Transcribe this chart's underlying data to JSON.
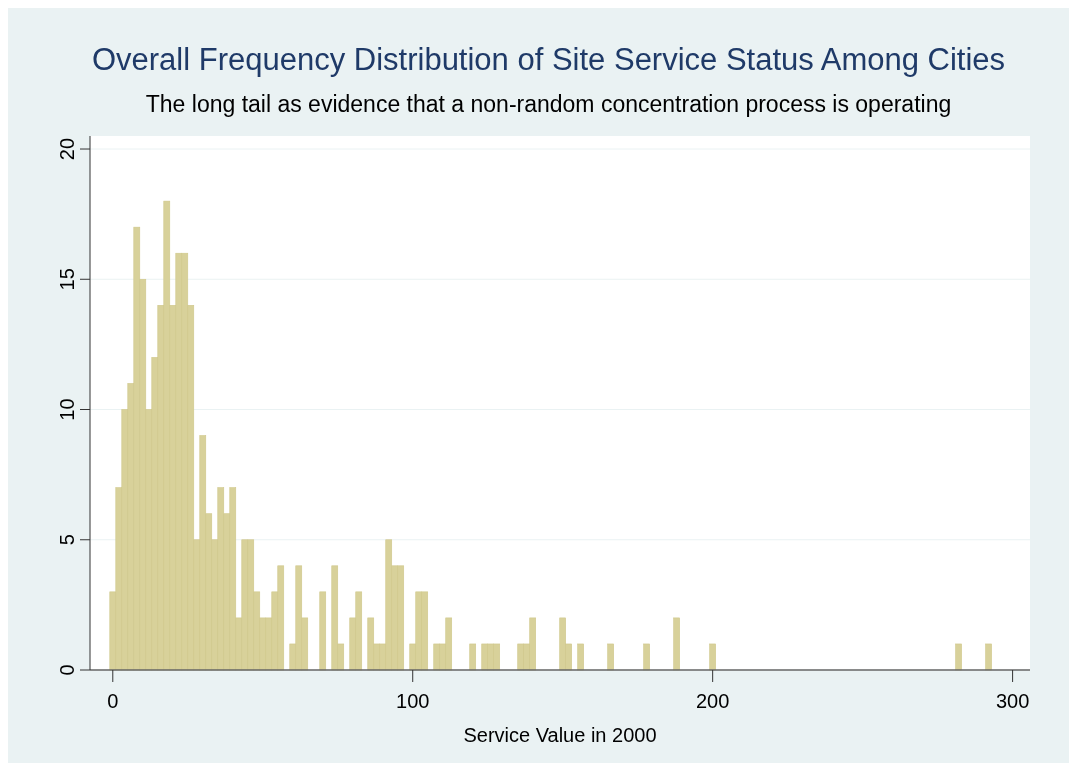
{
  "chart_data": {
    "type": "histogram",
    "title": "Overall Frequency Distribution of Site Service Status Among Cities",
    "subtitle": "The long tail as evidence that a non-random concentration process is operating",
    "xlabel": "Service Value in 2000",
    "bins": [
      -1,
      1,
      3,
      5,
      7,
      9,
      11,
      13,
      15,
      17,
      19,
      21,
      23,
      25,
      27,
      29,
      31,
      33,
      35,
      37,
      39,
      41,
      43,
      45,
      47,
      49,
      51,
      53,
      55,
      57,
      59,
      61,
      63,
      65,
      67,
      69,
      71,
      73,
      75,
      77,
      79,
      81,
      83,
      85,
      87,
      89,
      91,
      93,
      95,
      97,
      99,
      101,
      103,
      105,
      107,
      109,
      111,
      113,
      115,
      117,
      119,
      121,
      123,
      125,
      127,
      129,
      131,
      133,
      135,
      137,
      139,
      141,
      143,
      145,
      147,
      149,
      151,
      153,
      155,
      157,
      159,
      161,
      163,
      165,
      167,
      169,
      171,
      173,
      175,
      177,
      179,
      181,
      183,
      185,
      187,
      189,
      191,
      193,
      195,
      197,
      199,
      201,
      203,
      205,
      207,
      209,
      211,
      213,
      215,
      217,
      219,
      221,
      223,
      225,
      227,
      229,
      231,
      233,
      235,
      237,
      239,
      241,
      243,
      245,
      247,
      249,
      251,
      253,
      255,
      257,
      259,
      261,
      263,
      265,
      267,
      269,
      271,
      273,
      275,
      277,
      279,
      281,
      283,
      285,
      287,
      289,
      291,
      293
    ],
    "values": [
      3,
      7,
      10,
      11,
      17,
      15,
      10,
      12,
      14,
      18,
      14,
      16,
      16,
      14,
      5,
      9,
      6,
      5,
      7,
      6,
      7,
      2,
      5,
      5,
      3,
      2,
      2,
      3,
      4,
      0,
      1,
      4,
      2,
      0,
      0,
      3,
      0,
      4,
      1,
      0,
      2,
      3,
      0,
      2,
      1,
      1,
      5,
      4,
      4,
      0,
      1,
      3,
      3,
      0,
      1,
      1,
      2,
      0,
      0,
      0,
      1,
      0,
      1,
      1,
      1,
      0,
      0,
      0,
      1,
      1,
      2,
      0,
      0,
      0,
      0,
      2,
      1,
      0,
      1,
      0,
      0,
      0,
      0,
      1,
      0,
      0,
      0,
      0,
      0,
      1,
      0,
      0,
      0,
      0,
      2,
      0,
      0,
      0,
      0,
      0,
      1,
      0,
      0,
      0,
      0,
      0,
      0,
      0,
      0,
      0,
      0,
      0,
      0,
      0,
      0,
      0,
      0,
      0,
      0,
      0,
      0,
      0,
      0,
      0,
      0,
      0,
      0,
      0,
      0,
      0,
      0,
      0,
      0,
      0,
      0,
      0,
      0,
      0,
      0,
      0,
      0,
      1,
      0,
      0,
      0,
      0,
      1
    ],
    "color": "#d8d19a",
    "xlim": [
      -7.6,
      305.8
    ],
    "ylim": [
      0,
      20.5
    ],
    "xticks": [
      0,
      100,
      200,
      300
    ],
    "yticks": [
      0,
      5,
      10,
      15,
      20
    ],
    "grid": "y"
  }
}
